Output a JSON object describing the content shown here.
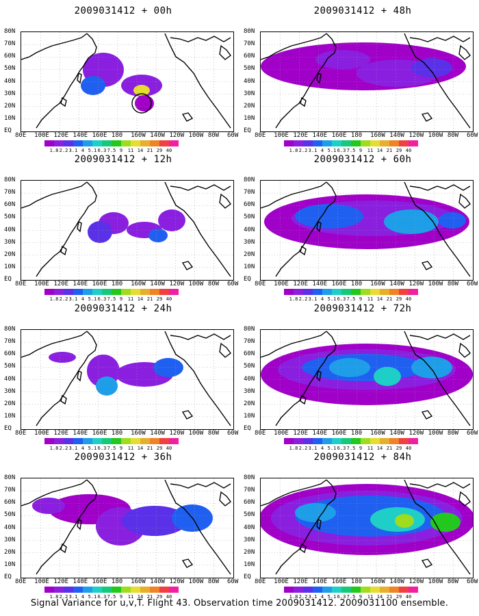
{
  "caption": "Signal Variance for u,v,T. Flight 43. Observation time 2009031412. 2009031100 ensemble.",
  "lat_labels": [
    "80N",
    "70N",
    "60N",
    "50N",
    "40N",
    "30N",
    "20N",
    "10N",
    "EQ"
  ],
  "lon_labels": [
    "80E",
    "100E",
    "120E",
    "140E",
    "160E",
    "180",
    "160W",
    "140W",
    "120W",
    "100W",
    "80W",
    "60W"
  ],
  "colorbar": {
    "levels": [
      "1.8",
      "2.2",
      "3.1",
      "4",
      "5.1",
      "6.3",
      "7.5",
      "9",
      "11",
      "14",
      "21",
      "29",
      "40"
    ],
    "colors": [
      "#a000c8",
      "#8a1fe0",
      "#5a30e8",
      "#2060f0",
      "#1e9ee8",
      "#1ecfc8",
      "#18c878",
      "#22c81e",
      "#a0dc1e",
      "#e6dc32",
      "#e6af2d",
      "#f08228",
      "#f04040",
      "#f020a0"
    ]
  },
  "panels": [
    {
      "title": "2009031412 + 00h",
      "intensity": 0
    },
    {
      "title": "2009031412 + 12h",
      "intensity": 1
    },
    {
      "title": "2009031412 + 24h",
      "intensity": 2
    },
    {
      "title": "2009031412 + 36h",
      "intensity": 3
    },
    {
      "title": "2009031412 + 48h",
      "intensity": 4
    },
    {
      "title": "2009031412 + 60h",
      "intensity": 5
    },
    {
      "title": "2009031412 + 72h",
      "intensity": 6
    },
    {
      "title": "2009031412 + 84h",
      "intensity": 7
    }
  ]
}
